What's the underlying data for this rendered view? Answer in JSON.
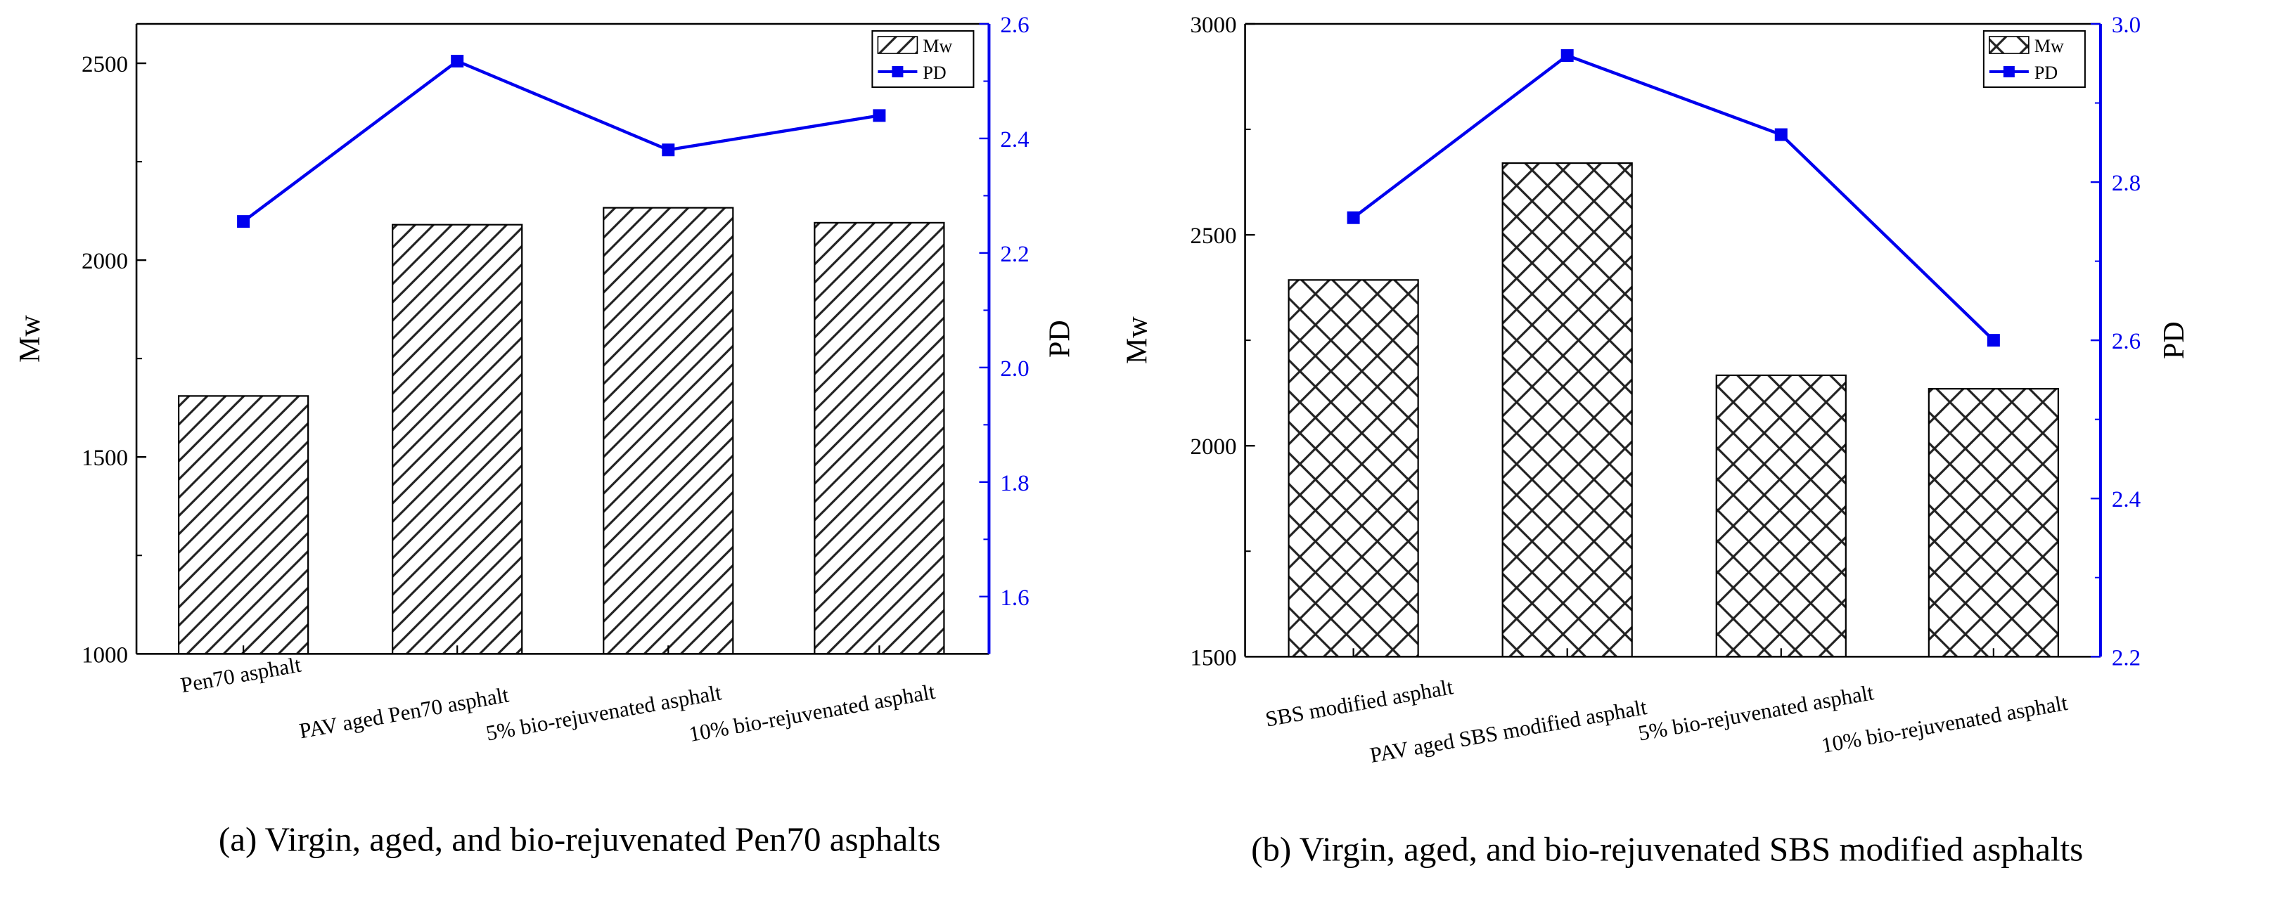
{
  "chart_data": [
    {
      "type": "bar+line",
      "caption": "(a) Virgin, aged, and bio-rejuvenated Pen70 asphalts",
      "categories": [
        "Pen70 asphalt",
        "PAV aged  Pen70 asphalt",
        "5% bio-rejuvenated asphalt",
        "10% bio-rejuvenated asphalt"
      ],
      "ylabel_left": "Mw",
      "ylabel_right": "PD",
      "ylim_left": [
        1000,
        2600
      ],
      "yticks_left": [
        1000,
        1500,
        2000,
        2500
      ],
      "ylim_right": [
        1.5,
        2.6
      ],
      "yticks_right": [
        1.6,
        1.8,
        2.0,
        2.2,
        2.4,
        2.6
      ],
      "series": [
        {
          "name": "Mw",
          "type": "bar",
          "axis": "left",
          "pattern": "diagonal",
          "values": [
            1655,
            2090,
            2133,
            2095
          ]
        },
        {
          "name": "PD",
          "type": "line",
          "axis": "right",
          "color": "#0000ee",
          "values": [
            2.255,
            2.535,
            2.38,
            2.44
          ]
        }
      ],
      "legend": [
        "Mw",
        "PD"
      ],
      "legend_position": "top-right"
    },
    {
      "type": "bar+line",
      "caption": "(b) Virgin, aged, and bio-rejuvenated SBS modified asphalts",
      "categories": [
        "SBS modified asphalt",
        "PAV aged  SBS modified  asphalt",
        "5% bio-rejuvenated asphalt",
        "10% bio-rejuvenated asphalt"
      ],
      "ylabel_left": "Mw",
      "ylabel_right": "PD",
      "ylim_left": [
        1500,
        3000
      ],
      "yticks_left": [
        1500,
        2000,
        2500,
        3000
      ],
      "ylim_right": [
        2.2,
        3.0
      ],
      "yticks_right": [
        2.2,
        2.4,
        2.6,
        2.8,
        3.0
      ],
      "series": [
        {
          "name": "Mw",
          "type": "bar",
          "axis": "left",
          "pattern": "crosshatch",
          "values": [
            2393,
            2670,
            2167,
            2135
          ]
        },
        {
          "name": "PD",
          "type": "line",
          "axis": "right",
          "color": "#0000ee",
          "values": [
            2.755,
            2.96,
            2.86,
            2.6
          ]
        }
      ],
      "legend": [
        "Mw",
        "PD"
      ],
      "legend_position": "top-right"
    }
  ]
}
